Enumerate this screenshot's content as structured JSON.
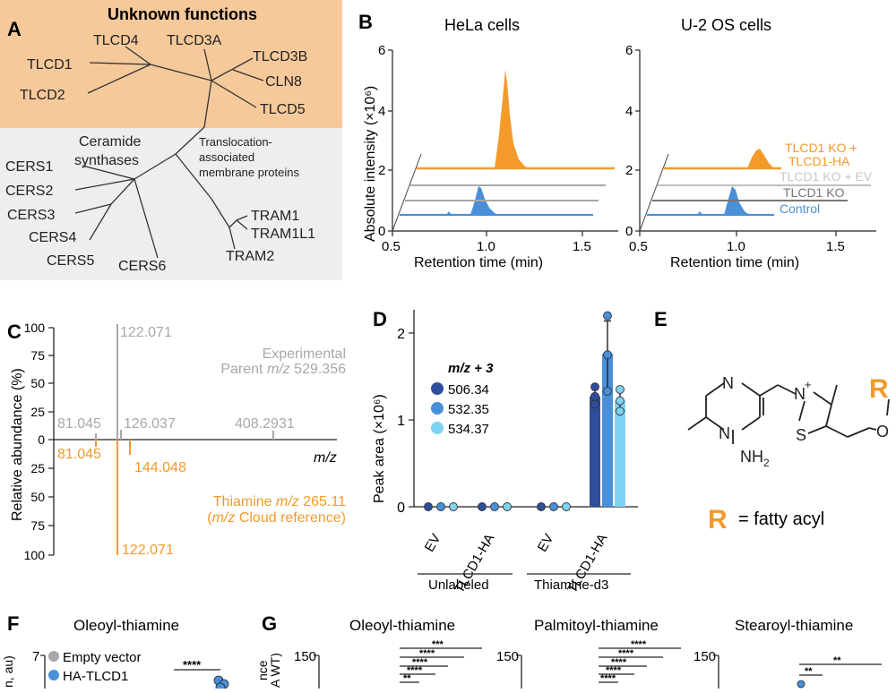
{
  "colors": {
    "orange": "#F39A2B",
    "orange_bg": "#F6C99A",
    "gray_bg": "#EEEEEE",
    "blue_dark": "#2E4E9B",
    "blue_mid": "#4A90D9",
    "blue_light": "#7FD3F2",
    "gray_line": "#A8A8A8",
    "dark_gray": "#777777"
  },
  "panel_a": {
    "letter": "A",
    "top_title": "Unknown functions",
    "leaves_top": [
      "TLCD1",
      "TLCD4",
      "TLCD3A",
      "TLCD3B",
      "CLN8",
      "TLCD2",
      "TLCD5"
    ],
    "group_ceramide": [
      "Ceramide",
      "synthases"
    ],
    "group_tram": [
      "Translocation-",
      "associated",
      "membrane proteins"
    ],
    "leaves_bottom": [
      "CERS1",
      "CERS2",
      "CERS3",
      "CERS4",
      "CERS5",
      "CERS6",
      "TRAM1",
      "TRAM1L1",
      "TRAM2"
    ]
  },
  "panel_b": {
    "letter": "B",
    "ylabel": "Absolute intensity (×10⁶)",
    "xlabel": "Retention time (min)",
    "charts": [
      {
        "title": "HeLa cells",
        "yticks": [
          "0",
          "2",
          "4",
          "6"
        ],
        "xticks": [
          "0.5",
          "1.0",
          "1.5"
        ]
      },
      {
        "title": "U-2 OS cells",
        "yticks": [
          "0",
          "2",
          "4",
          "6"
        ],
        "xticks": [
          "0.5",
          "1.0",
          "1.5"
        ],
        "legend": [
          "TLCD1 KO +",
          "TLCD1-HA",
          "TLCD1 KO + EV",
          "TLCD1 KO",
          "Control"
        ]
      }
    ]
  },
  "panel_c": {
    "letter": "C",
    "ylabel": "Relative abundance (%)",
    "yticks_top": [
      "100",
      "75",
      "50",
      "25",
      "0"
    ],
    "yticks_bottom": [
      "25",
      "50",
      "75",
      "100"
    ],
    "peak_labels_top": [
      "122.071",
      "81.045",
      "126.037",
      "408.2931"
    ],
    "peak_labels_bottom": [
      "81.045",
      "144.048",
      "122.071"
    ],
    "exp_line1": "Experimental",
    "exp_line2a": "Parent ",
    "exp_line2b": "m/z",
    "exp_line2c": " 529.356",
    "ref_line1a": "Thiamine ",
    "ref_line1b": "m/z",
    "ref_line1c": " 265.11",
    "ref_line2a": "(",
    "ref_line2b": "m/z",
    "ref_line2c": " Cloud reference)",
    "xlabel": "m/z"
  },
  "panel_d": {
    "letter": "D",
    "ylabel": "Peak area (×10⁶)",
    "yticks": [
      "0",
      "1",
      "2"
    ],
    "legend_title": "m/z + 3",
    "legend": [
      "506.34",
      "532.35",
      "534.37"
    ],
    "categories": [
      "EV",
      "TLCD1-HA",
      "EV",
      "TLCD1-HA"
    ],
    "groups": [
      "Unlabeled",
      "Thiamine-d3"
    ]
  },
  "chart_data": {
    "type": "bar",
    "categories": [
      "EV (Unlabeled)",
      "TLCD1-HA (Unlabeled)",
      "EV (Thiamine-d3)",
      "TLCD1-HA (Thiamine-d3)"
    ],
    "series": [
      {
        "name": "506.34",
        "values": [
          0,
          0,
          0,
          1.27
        ]
      },
      {
        "name": "532.35",
        "values": [
          0,
          0,
          0,
          1.76
        ]
      },
      {
        "name": "534.37",
        "values": [
          0,
          0,
          0,
          1.22
        ]
      }
    ],
    "errors": [
      [
        0,
        0,
        0,
        0.12
      ],
      [
        0,
        0,
        0,
        0.38
      ],
      [
        0,
        0,
        0,
        0.15
      ]
    ],
    "points": [
      [
        [
          0
        ],
        [
          0
        ],
        [
          0
        ],
        [
          1.18,
          1.27,
          1.38
        ]
      ],
      [
        [
          0
        ],
        [
          0
        ],
        [
          0
        ],
        [
          1.33,
          1.75,
          2.2
        ]
      ],
      [
        [
          0
        ],
        [
          0
        ],
        [
          0
        ],
        [
          1.1,
          1.22,
          1.35
        ]
      ]
    ],
    "ylabel": "Peak area (×10⁶)",
    "ylim": [
      0,
      2.2
    ]
  },
  "panel_e": {
    "letter": "E",
    "atoms": [
      "N",
      "N",
      "NH",
      "2",
      "N",
      "+",
      "S",
      "O"
    ],
    "r": "R",
    "r_text": "= fatty acyl"
  },
  "panel_f": {
    "letter": "F",
    "title": "Oleoyl-thiamine",
    "ytick": "7",
    "ylabel_fragment": "n, au)",
    "legend": [
      "Empty vector",
      "HA-TLCD1"
    ],
    "sig": "****"
  },
  "panel_g": {
    "letter": "G",
    "ylabel_fragment": "nce",
    "ylabel_fragment2": "A WT)",
    "titles": [
      "Oleoyl-thiamine",
      "Palmitoyl-thiamine",
      "Stearoyl-thiamine"
    ],
    "yticks": [
      "150",
      "150",
      "150"
    ],
    "sig_oleoyl": [
      "***",
      "****",
      "****",
      "****",
      "**"
    ],
    "sig_palmitoyl": [
      "****",
      "****",
      "****",
      "****",
      "****"
    ],
    "sig_stearoyl": [
      "**",
      "**"
    ]
  }
}
